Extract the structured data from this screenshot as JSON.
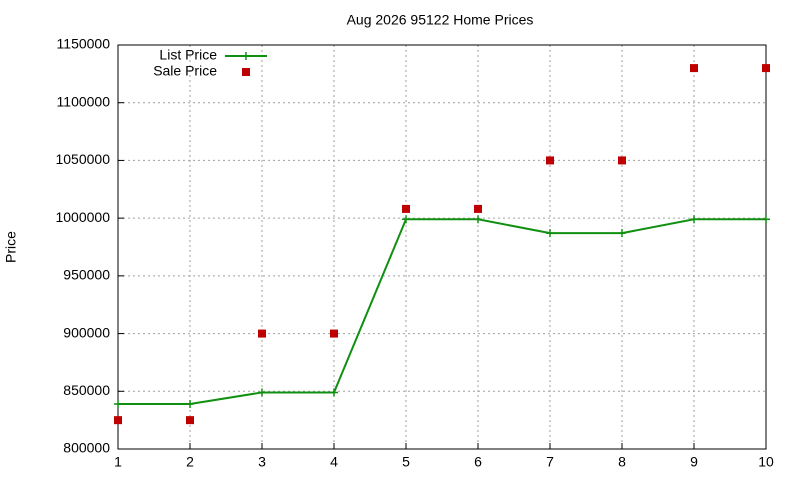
{
  "chart_data": {
    "type": "line",
    "title": "Aug 2026 95122 Home Prices",
    "y_label": "Price",
    "x": [
      1,
      2,
      3,
      4,
      5,
      6,
      7,
      8,
      9,
      10
    ],
    "series": [
      {
        "name": "List Price",
        "color": "#109010",
        "style": "line",
        "values": [
          839000,
          839000,
          849000,
          849000,
          999000,
          999000,
          987000,
          987000,
          999000,
          999000
        ]
      },
      {
        "name": "Sale Price",
        "color": "#c00000",
        "style": "points",
        "values": [
          825000,
          825000,
          900000,
          900000,
          1008000,
          1008000,
          1050000,
          1050000,
          1130000,
          1130000
        ]
      }
    ],
    "xlim": [
      1,
      10
    ],
    "xticks": [
      1,
      2,
      3,
      4,
      5,
      6,
      7,
      8,
      9,
      10
    ],
    "ylim": [
      800000,
      1150000
    ],
    "yticks": [
      800000,
      850000,
      900000,
      950000,
      1000000,
      1050000,
      1100000,
      1150000
    ],
    "grid": true,
    "legend": "top-left"
  }
}
